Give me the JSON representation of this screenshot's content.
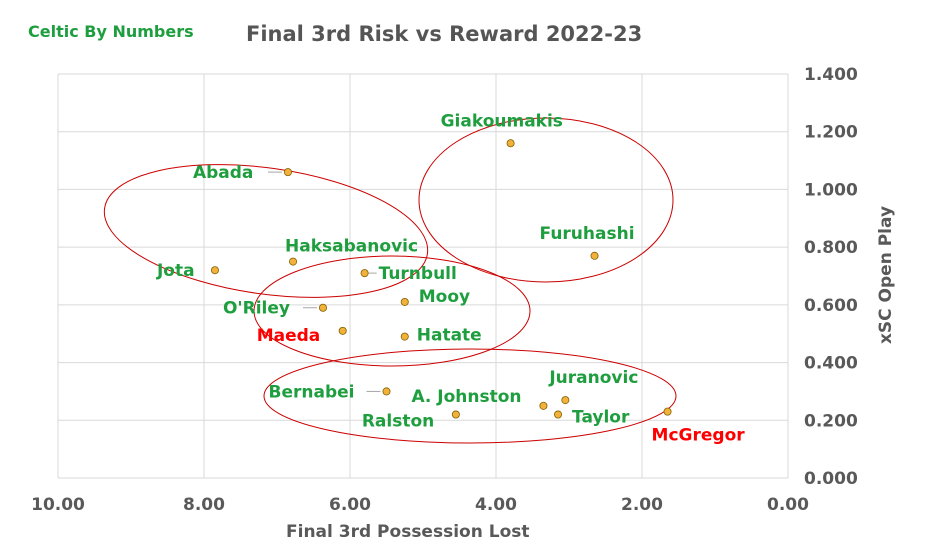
{
  "header": {
    "brand": "Celtic By Numbers",
    "title": "Final 3rd Risk vs Reward 2022-23"
  },
  "colors": {
    "label_default": "#1e9e3e",
    "label_highlight": "#ff0000",
    "point_fill": "#f2b13a",
    "point_stroke": "#7f6000",
    "ellipse": "#cc0000",
    "grid": "#d9d9d9",
    "axis_text": "#595959"
  },
  "chart_data": {
    "type": "scatter",
    "title": "Final 3rd Risk vs Reward 2022-23",
    "xlabel": "Final 3rd Possession Lost",
    "ylabel": "xSC Open Play",
    "xlim": [
      10.0,
      0.0
    ],
    "ylim": [
      0.0,
      1.4
    ],
    "x_reversed": true,
    "y_axis_position": "right",
    "grid": true,
    "x_ticks": [
      "10.00",
      "8.00",
      "6.00",
      "4.00",
      "2.00",
      "0.00"
    ],
    "y_ticks": [
      "0.000",
      "0.200",
      "0.400",
      "0.600",
      "0.800",
      "1.000",
      "1.200",
      "1.400"
    ],
    "points": [
      {
        "name": "Giakoumakis",
        "x": 3.8,
        "y": 1.16,
        "highlight": false
      },
      {
        "name": "Abada",
        "x": 6.85,
        "y": 1.06,
        "highlight": false
      },
      {
        "name": "Furuhashi",
        "x": 2.65,
        "y": 0.77,
        "highlight": false
      },
      {
        "name": "Haksabanovic",
        "x": 6.78,
        "y": 0.75,
        "highlight": false
      },
      {
        "name": "Jota",
        "x": 7.85,
        "y": 0.72,
        "highlight": false
      },
      {
        "name": "Turnbull",
        "x": 5.8,
        "y": 0.71,
        "highlight": false
      },
      {
        "name": "Mooy",
        "x": 5.25,
        "y": 0.61,
        "highlight": false
      },
      {
        "name": "O'Riley",
        "x": 6.37,
        "y": 0.59,
        "highlight": false
      },
      {
        "name": "Maeda",
        "x": 6.1,
        "y": 0.51,
        "highlight": true
      },
      {
        "name": "Hatate",
        "x": 5.25,
        "y": 0.49,
        "highlight": false
      },
      {
        "name": "Bernabei",
        "x": 5.5,
        "y": 0.3,
        "highlight": false
      },
      {
        "name": "Juranovic",
        "x": 3.05,
        "y": 0.27,
        "highlight": false
      },
      {
        "name": "A. Johnston",
        "x": 3.35,
        "y": 0.25,
        "highlight": false
      },
      {
        "name": "Ralston",
        "x": 4.55,
        "y": 0.22,
        "highlight": false
      },
      {
        "name": "Taylor",
        "x": 3.15,
        "y": 0.22,
        "highlight": false
      },
      {
        "name": "McGregor",
        "x": 1.65,
        "y": 0.23,
        "highlight": true
      }
    ]
  }
}
